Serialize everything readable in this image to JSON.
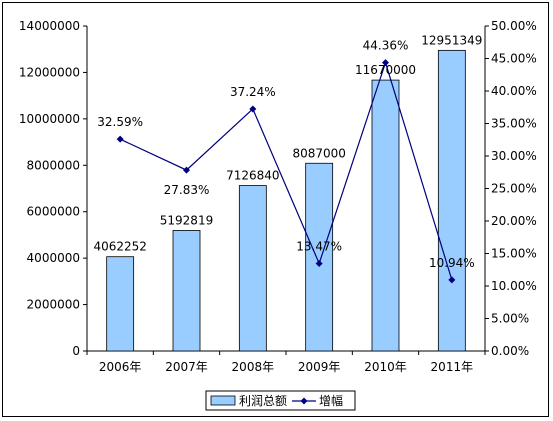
{
  "chart_data": {
    "type": "bar+line",
    "categories": [
      "2006年",
      "2007年",
      "2008年",
      "2009年",
      "2010年",
      "2011年"
    ],
    "series": [
      {
        "name": "利润总额",
        "type": "bar",
        "axis": "left",
        "values": [
          4062252,
          5192819,
          7126840,
          8087000,
          11670000,
          12951349
        ],
        "labels": [
          "4062252",
          "5192819",
          "7126840",
          "8087000",
          "11670000",
          "12951349"
        ],
        "color": "#99ccff"
      },
      {
        "name": "增幅",
        "type": "line",
        "axis": "right",
        "values": [
          32.59,
          27.83,
          37.24,
          13.47,
          44.36,
          10.94
        ],
        "labels": [
          "32.59%",
          "27.83%",
          "37.24%",
          "13.47%",
          "44.36%",
          "10.94%"
        ],
        "color": "#000080"
      }
    ],
    "y_left": {
      "ylim": [
        0,
        14000000
      ],
      "ticks": [
        0,
        2000000,
        4000000,
        6000000,
        8000000,
        10000000,
        12000000,
        14000000
      ],
      "tick_labels": [
        "0",
        "2000000",
        "4000000",
        "6000000",
        "8000000",
        "10000000",
        "12000000",
        "14000000"
      ]
    },
    "y_right": {
      "ylim": [
        0,
        50
      ],
      "ticks": [
        0,
        5,
        10,
        15,
        20,
        25,
        30,
        35,
        40,
        45,
        50
      ],
      "tick_labels": [
        "0.00%",
        "5.00%",
        "10.00%",
        "15.00%",
        "20.00%",
        "25.00%",
        "30.00%",
        "35.00%",
        "40.00%",
        "45.00%",
        "50.00%"
      ]
    },
    "grid": false,
    "legend": {
      "placement": "bottom-center",
      "entries": [
        "利润总额",
        "增幅"
      ]
    }
  }
}
